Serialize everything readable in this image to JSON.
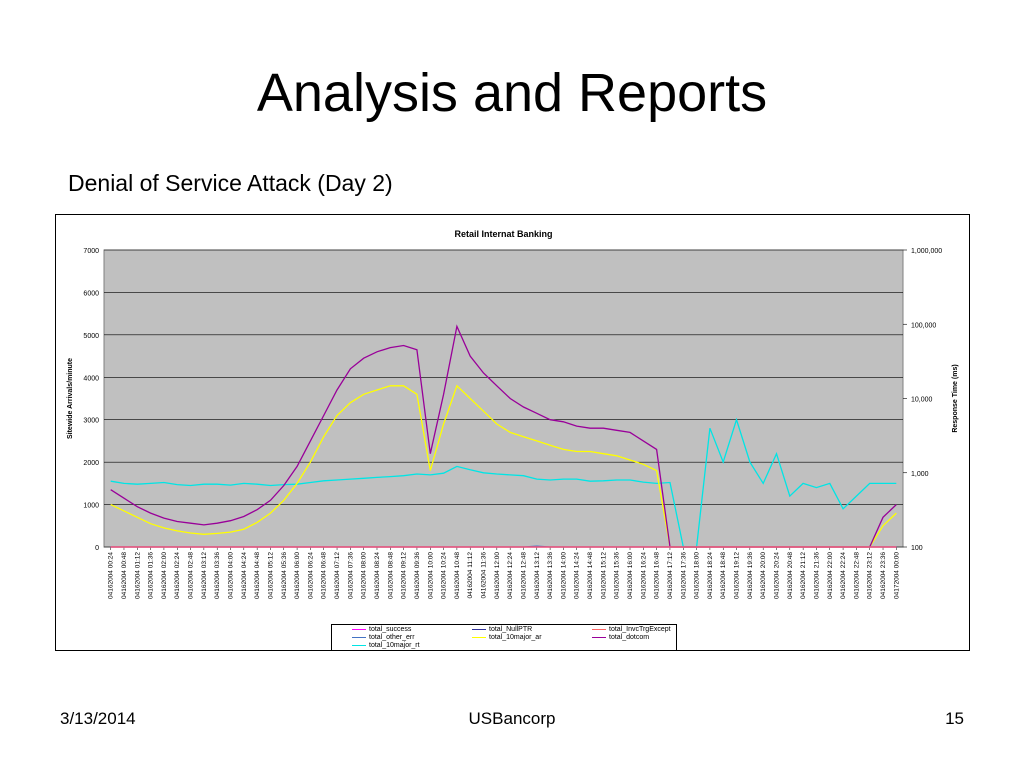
{
  "slide": {
    "title": "Analysis and Reports",
    "subtitle": "Denial of Service Attack (Day 2)",
    "footer_date": "3/13/2014",
    "footer_company": "USBancorp",
    "footer_page": "15"
  },
  "chart_data": {
    "type": "line",
    "title": "Retail Internat Banking",
    "ylabel": "Sitewide Arrivals/minute",
    "y2label": "Response Time (ms)",
    "ylim": [
      0,
      7000
    ],
    "yticks": [
      "0",
      "1000",
      "2000",
      "3000",
      "4000",
      "5000",
      "6000",
      "7000"
    ],
    "y2scale": "log",
    "y2lim": [
      100,
      1000000
    ],
    "y2ticks": [
      "100",
      "1,000",
      "10,000",
      "100,000",
      "1,000,000"
    ],
    "grid": true,
    "legend_position": "bottom",
    "categories": [
      "04162004 00:24",
      "04162004 00:48",
      "04162004 01:12",
      "04162004 01:36",
      "04162004 02:00",
      "04162004 02:24",
      "04162004 02:48",
      "04162004 03:12",
      "04162004 03:36",
      "04162004 04:00",
      "04162004 04:24",
      "04162004 04:48",
      "04162004 05:12",
      "04162004 05:36",
      "04162004 06:00",
      "04162004 06:24",
      "04162004 06:48",
      "04162004 07:12",
      "04162004 07:36",
      "04162004 08:00",
      "04162004 08:24",
      "04162004 08:48",
      "04162004 09:12",
      "04162004 09:36",
      "04162004 10:00",
      "04162004 10:24",
      "04162004 10:48",
      "04162004 11:12",
      "04162004 11:36",
      "04162004 12:00",
      "04162004 12:24",
      "04162004 12:48",
      "04162004 13:12",
      "04162004 13:36",
      "04162004 14:00",
      "04162004 14:24",
      "04162004 14:48",
      "04162004 15:12",
      "04162004 15:36",
      "04162004 16:00",
      "04162004 16:24",
      "04162004 16:48",
      "04162004 17:12",
      "04162004 17:36",
      "04162004 18:00",
      "04162004 18:24",
      "04162004 18:48",
      "04162004 19:12",
      "04162004 19:36",
      "04162004 20:00",
      "04162004 20:24",
      "04162004 20:48",
      "04162004 21:12",
      "04162004 21:36",
      "04162004 22:00",
      "04162004 22:24",
      "04162004 22:48",
      "04162004 23:12",
      "04162004 23:36",
      "04172004 00:00"
    ],
    "series": [
      {
        "name": "total_success",
        "color": "#ff00ff",
        "axis": "y",
        "values": [
          0,
          0,
          0,
          0,
          0,
          0,
          0,
          0,
          0,
          0,
          0,
          0,
          0,
          0,
          0,
          0,
          0,
          0,
          0,
          0,
          0,
          0,
          0,
          0,
          0,
          0,
          0,
          0,
          0,
          0,
          0,
          0,
          0,
          0,
          0,
          0,
          0,
          0,
          0,
          0,
          0,
          0,
          0,
          0,
          0,
          0,
          0,
          0,
          0,
          0,
          0,
          0,
          0,
          0,
          0,
          0,
          0,
          0,
          0,
          0
        ]
      },
      {
        "name": "total_other_err",
        "color": "#4472c4",
        "axis": "y",
        "values": [
          0,
          0,
          0,
          0,
          0,
          0,
          0,
          0,
          0,
          0,
          0,
          0,
          0,
          0,
          0,
          0,
          0,
          0,
          0,
          0,
          0,
          0,
          0,
          0,
          0,
          0,
          0,
          0,
          0,
          0,
          0,
          0,
          20,
          0,
          0,
          0,
          0,
          0,
          0,
          0,
          0,
          0,
          0,
          0,
          0,
          0,
          0,
          0,
          0,
          0,
          0,
          0,
          0,
          0,
          0,
          0,
          0,
          0,
          0,
          0
        ]
      },
      {
        "name": "total_10major_rt",
        "color": "#00e5e5",
        "axis": "y",
        "values": [
          1550,
          1500,
          1480,
          1500,
          1520,
          1470,
          1450,
          1480,
          1480,
          1460,
          1500,
          1480,
          1450,
          1470,
          1480,
          1520,
          1560,
          1580,
          1600,
          1620,
          1640,
          1660,
          1680,
          1720,
          1700,
          1740,
          1900,
          1820,
          1750,
          1720,
          1700,
          1680,
          1600,
          1580,
          1600,
          1600,
          1550,
          1560,
          1580,
          1580,
          1530,
          1500,
          1520,
          0,
          0,
          2800,
          2000,
          3000,
          2000,
          1500,
          2200,
          1200,
          1500,
          1400,
          1500,
          900,
          1200,
          1500,
          1500,
          1500
        ]
      },
      {
        "name": "total_NullPTR",
        "color": "#333399",
        "axis": "y",
        "values": [
          0,
          0,
          0,
          0,
          0,
          0,
          0,
          0,
          0,
          0,
          0,
          0,
          0,
          0,
          0,
          0,
          0,
          0,
          0,
          0,
          0,
          0,
          0,
          0,
          0,
          0,
          0,
          0,
          0,
          0,
          0,
          0,
          0,
          0,
          0,
          0,
          0,
          0,
          0,
          0,
          0,
          0,
          0,
          0,
          0,
          0,
          0,
          0,
          0,
          0,
          0,
          0,
          0,
          0,
          0,
          0,
          0,
          0,
          0,
          0
        ]
      },
      {
        "name": "total_10major_ar",
        "color": "#ffff00",
        "axis": "y",
        "values": [
          1000,
          850,
          700,
          550,
          450,
          380,
          330,
          300,
          320,
          350,
          420,
          580,
          800,
          1100,
          1500,
          2000,
          2600,
          3100,
          3400,
          3600,
          3700,
          3800,
          3800,
          3600,
          1800,
          2900,
          3800,
          3500,
          3200,
          2900,
          2700,
          2600,
          2500,
          2400,
          2300,
          2250,
          2250,
          2200,
          2150,
          2050,
          1950,
          1800,
          0,
          0,
          0,
          0,
          0,
          0,
          0,
          0,
          0,
          0,
          0,
          0,
          0,
          0,
          0,
          0,
          500,
          800
        ]
      },
      {
        "name": "total_InvcTrgExcept",
        "color": "#ff6666",
        "axis": "y",
        "values": [
          0,
          0,
          0,
          0,
          0,
          0,
          0,
          0,
          0,
          0,
          0,
          0,
          0,
          0,
          0,
          0,
          0,
          0,
          0,
          0,
          0,
          0,
          0,
          0,
          0,
          0,
          0,
          0,
          0,
          0,
          0,
          0,
          0,
          0,
          0,
          0,
          0,
          0,
          0,
          0,
          0,
          0,
          0,
          0,
          0,
          0,
          0,
          0,
          0,
          0,
          0,
          0,
          0,
          0,
          0,
          0,
          0,
          0,
          0,
          0
        ]
      },
      {
        "name": "total_dotcom",
        "color": "#990099",
        "axis": "y",
        "values": [
          1350,
          1150,
          950,
          800,
          680,
          600,
          560,
          520,
          560,
          620,
          720,
          880,
          1100,
          1450,
          1900,
          2500,
          3100,
          3700,
          4200,
          4450,
          4600,
          4700,
          4750,
          4650,
          2200,
          3600,
          5200,
          4500,
          4100,
          3800,
          3500,
          3300,
          3150,
          3000,
          2950,
          2850,
          2800,
          2800,
          2750,
          2700,
          2500,
          2300,
          0,
          0,
          0,
          0,
          0,
          0,
          0,
          0,
          0,
          0,
          0,
          0,
          0,
          0,
          0,
          0,
          700,
          1000
        ]
      }
    ]
  }
}
